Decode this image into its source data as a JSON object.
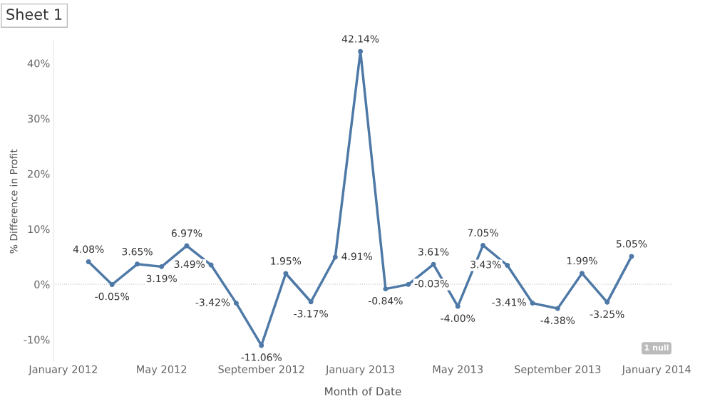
{
  "chart_data": {
    "type": "line",
    "title": "Sheet 1",
    "xlabel": "Month of Date",
    "ylabel": "% Difference in Profit",
    "x": [
      "2012-02",
      "2012-03",
      "2012-04",
      "2012-05",
      "2012-06",
      "2012-07",
      "2012-08",
      "2012-09",
      "2012-10",
      "2012-11",
      "2012-12",
      "2013-01",
      "2013-02",
      "2013-03",
      "2013-04",
      "2013-05",
      "2013-06",
      "2013-07",
      "2013-08",
      "2013-09",
      "2013-10",
      "2013-11",
      "2013-12"
    ],
    "series": [
      {
        "color": "#4e79a7",
        "values": [
          4.08,
          -0.05,
          3.65,
          3.19,
          6.97,
          3.49,
          -3.42,
          -11.06,
          1.95,
          -3.17,
          4.91,
          42.14,
          -0.84,
          -0.03,
          3.61,
          -4.0,
          7.05,
          3.43,
          -3.41,
          -4.38,
          1.99,
          -3.25,
          5.05
        ],
        "value_labels": [
          "4.08%",
          "-0.05%",
          "3.65%",
          "3.19%",
          "6.97%",
          "3.49%",
          "-3.42%",
          "-11.06%",
          "1.95%",
          "-3.17%",
          "4.91%",
          "42.14%",
          "-0.84%",
          "-0.03%",
          "3.61%",
          "-4.00%",
          "7.05%",
          "3.43%",
          "-3.41%",
          "-4.38%",
          "1.99%",
          "-3.25%",
          "5.05%"
        ]
      }
    ],
    "xlim": [
      "2011-12-20",
      "2014-01-20"
    ],
    "xticks": [
      {
        "value": "2012-01",
        "label": "January 2012"
      },
      {
        "value": "2012-05",
        "label": "May 2012"
      },
      {
        "value": "2012-09",
        "label": "September 2012"
      },
      {
        "value": "2013-01",
        "label": "January 2013"
      },
      {
        "value": "2013-05",
        "label": "May 2013"
      },
      {
        "value": "2013-09",
        "label": "September 2013"
      },
      {
        "value": "2014-01",
        "label": "January 2014"
      }
    ],
    "ylim": [
      -14,
      44
    ],
    "yticks": [
      {
        "value": -10,
        "label": "-10%"
      },
      {
        "value": 0,
        "label": "0%"
      },
      {
        "value": 10,
        "label": "10%"
      },
      {
        "value": 20,
        "label": "20%"
      },
      {
        "value": 30,
        "label": "30%"
      },
      {
        "value": 40,
        "label": "40%"
      }
    ],
    "ref_lines": [
      {
        "axis": "y",
        "value": 0,
        "color": "#c8c8c8",
        "line_style": "dotted"
      }
    ],
    "marker": "circle",
    "line_style": "solid",
    "grid": false,
    "legend": false,
    "annotations": [
      "1 null"
    ]
  }
}
